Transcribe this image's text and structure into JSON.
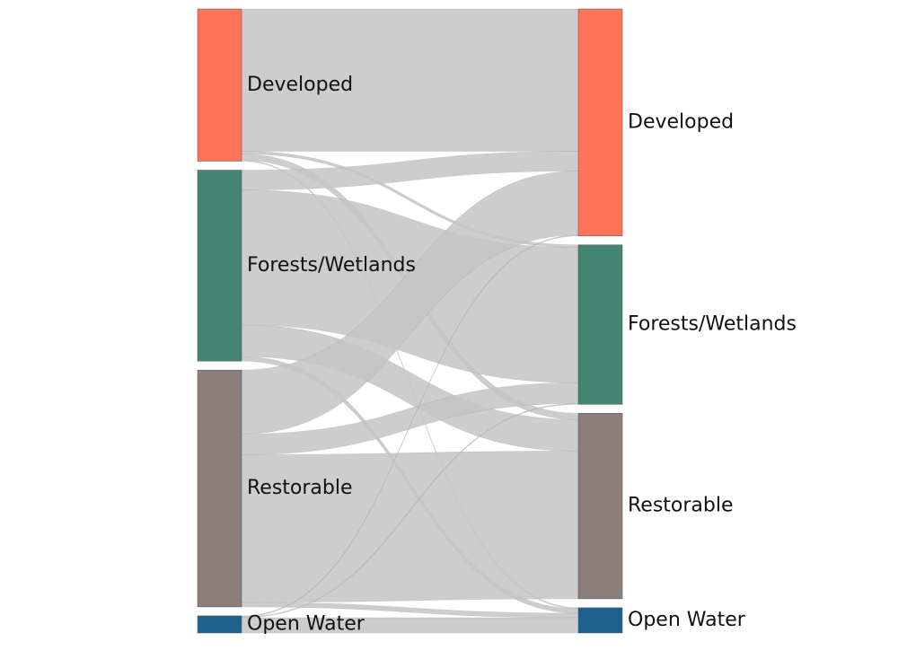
{
  "chart_data": {
    "type": "sankey",
    "nodes_left": [
      {
        "name": "Developed",
        "color": "#ff735a"
      },
      {
        "name": "Forests/Wetlands",
        "color": "#428570"
      },
      {
        "name": "Restorable",
        "color": "#8c7f7a"
      },
      {
        "name": "Open Water",
        "color": "#1f618c"
      }
    ],
    "nodes_right": [
      {
        "name": "Developed",
        "color": "#ff735a"
      },
      {
        "name": "Forests/Wetlands",
        "color": "#428570"
      },
      {
        "name": "Restorable",
        "color": "#8c7f7a"
      },
      {
        "name": "Open Water",
        "color": "#1f618c"
      }
    ],
    "links": [
      {
        "source": "Developed",
        "target": "Developed",
        "value": 158
      },
      {
        "source": "Developed",
        "target": "Forests/Wetlands",
        "value": 3
      },
      {
        "source": "Developed",
        "target": "Restorable",
        "value": 7
      },
      {
        "source": "Developed",
        "target": "Open Water",
        "value": 1
      },
      {
        "source": "Forests/Wetlands",
        "target": "Developed",
        "value": 22
      },
      {
        "source": "Forests/Wetlands",
        "target": "Forests/Wetlands",
        "value": 150
      },
      {
        "source": "Forests/Wetlands",
        "target": "Restorable",
        "value": 35
      },
      {
        "source": "Forests/Wetlands",
        "target": "Open Water",
        "value": 5
      },
      {
        "source": "Restorable",
        "target": "Developed",
        "value": 71
      },
      {
        "source": "Restorable",
        "target": "Forests/Wetlands",
        "value": 23
      },
      {
        "source": "Restorable",
        "target": "Restorable",
        "value": 164
      },
      {
        "source": "Restorable",
        "target": "Open Water",
        "value": 5
      },
      {
        "source": "Open Water",
        "target": "Developed",
        "value": 1
      },
      {
        "source": "Open Water",
        "target": "Forests/Wetlands",
        "value": 1
      },
      {
        "source": "Open Water",
        "target": "Open Water",
        "value": 17
      }
    ]
  }
}
